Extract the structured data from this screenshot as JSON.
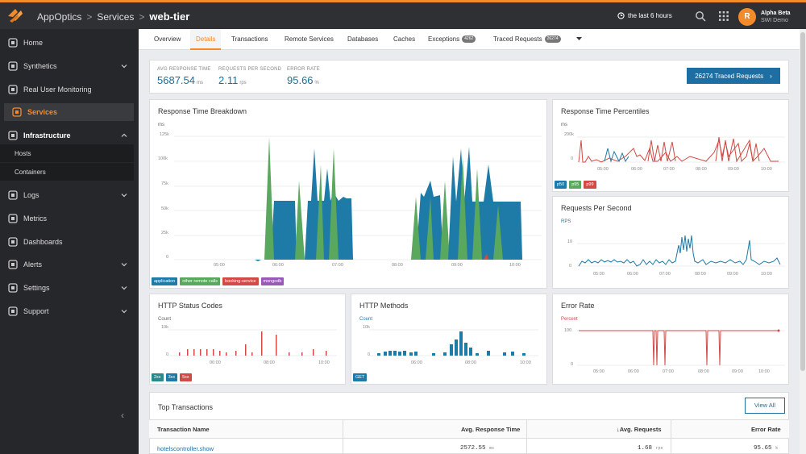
{
  "app": {
    "name": "AppOptics",
    "breadcrumb_section": "Services",
    "breadcrumb_current": "web-tier",
    "time_range": "the last 6 hours",
    "user": {
      "initial": "R",
      "name": "Alpha Beta",
      "org": "SWI Demo"
    }
  },
  "sidebar": {
    "items": [
      {
        "label": "Home",
        "icon": "home-icon"
      },
      {
        "label": "Synthetics",
        "icon": "synthetics-icon"
      },
      {
        "label": "Real User Monitoring",
        "icon": "rum-icon"
      },
      {
        "label": "Services",
        "icon": "services-icon"
      },
      {
        "label": "Infrastructure",
        "icon": "infrastructure-icon"
      },
      {
        "label": "Logs",
        "icon": "logs-icon"
      },
      {
        "label": "Metrics",
        "icon": "metrics-icon"
      },
      {
        "label": "Dashboards",
        "icon": "dashboards-icon"
      },
      {
        "label": "Alerts",
        "icon": "alerts-icon"
      },
      {
        "label": "Settings",
        "icon": "settings-icon"
      },
      {
        "label": "Support",
        "icon": "support-icon"
      }
    ],
    "subitems": [
      "Hosts",
      "Containers"
    ]
  },
  "tabs": [
    {
      "label": "Overview"
    },
    {
      "label": "Details",
      "active": true
    },
    {
      "label": "Transactions"
    },
    {
      "label": "Remote Services"
    },
    {
      "label": "Databases"
    },
    {
      "label": "Caches"
    },
    {
      "label": "Exceptions",
      "badge": "4262"
    },
    {
      "label": "Traced Requests",
      "badge": "26274"
    }
  ],
  "kpis": {
    "response_time": {
      "label": "AVG RESPONSE TIME",
      "value": "5687.54",
      "unit": "ms"
    },
    "requests": {
      "label": "REQUESTS PER SECOND",
      "value": "2.11",
      "unit": "rps"
    },
    "error_rate": {
      "label": "ERROR RATE",
      "value": "95.66",
      "unit": "%"
    }
  },
  "traced_button": "26274 Traced Requests",
  "panels": {
    "breakdown": {
      "title": "Response Time Breakdown",
      "unit": "ms",
      "y_ticks": [
        "125k",
        "100k",
        "75k",
        "50k",
        "25k",
        "0"
      ],
      "x_ticks": [
        "05:00",
        "06:00",
        "07:00",
        "08:00",
        "09:00",
        "10:00"
      ],
      "legend": [
        {
          "label": "application",
          "color": "#1e7aa6"
        },
        {
          "label": "other remote calls",
          "color": "#5aa75e"
        },
        {
          "label": "booking-service",
          "color": "#d24a45"
        },
        {
          "label": "mongodb",
          "color": "#9b59b6"
        }
      ]
    },
    "percentiles": {
      "title": "Response Time Percentiles",
      "unit": "ms",
      "y_ticks": [
        "200k",
        "0"
      ],
      "x_ticks": [
        "05:00",
        "06:00",
        "07:00",
        "08:00",
        "09:00",
        "10:00"
      ],
      "legend": [
        {
          "label": "p50",
          "color": "#1e7aa6"
        },
        {
          "label": "p95",
          "color": "#5aa75e"
        },
        {
          "label": "p99",
          "color": "#d24a45"
        }
      ]
    },
    "rps": {
      "title": "Requests Per Second",
      "unit": "RPS",
      "y_ticks": [
        "10",
        "0"
      ],
      "x_ticks": [
        "05:00",
        "06:00",
        "07:00",
        "08:00",
        "09:00",
        "10:00"
      ]
    },
    "status_codes": {
      "title": "HTTP Status Codes",
      "unit": "Count",
      "y_ticks": [
        "10k",
        "0"
      ],
      "x_ticks": [
        "06:00",
        "08:00",
        "10:00"
      ],
      "legend": [
        {
          "label": "2xx",
          "color": "#2a8a8a"
        },
        {
          "label": "3xx",
          "color": "#1e7aa6"
        },
        {
          "label": "5xx",
          "color": "#d24a45"
        }
      ]
    },
    "methods": {
      "title": "HTTP Methods",
      "unit": "Count",
      "y_ticks": [
        "10k",
        "0"
      ],
      "x_ticks": [
        "06:00",
        "08:00",
        "10:00"
      ],
      "legend": [
        {
          "label": "GET",
          "color": "#1e7aa6"
        }
      ]
    },
    "error_rate": {
      "title": "Error Rate",
      "unit": "Percent",
      "y_ticks": [
        "100",
        "0"
      ],
      "x_ticks": [
        "05:00",
        "06:00",
        "07:00",
        "08:00",
        "09:00",
        "10:00"
      ]
    }
  },
  "top_transactions": {
    "title": "Top Transactions",
    "view_all": "View All",
    "columns": [
      "Transaction Name",
      "Avg. Response Time",
      "↓Avg. Requests",
      "Error Rate"
    ],
    "rows": [
      {
        "name": "hotelscontroller.show",
        "avg_response": "2572.55",
        "avg_response_unit": "ms",
        "avg_requests": "1.68",
        "avg_requests_unit": "rps",
        "error_rate": "95.65",
        "error_rate_unit": "%"
      }
    ]
  }
}
